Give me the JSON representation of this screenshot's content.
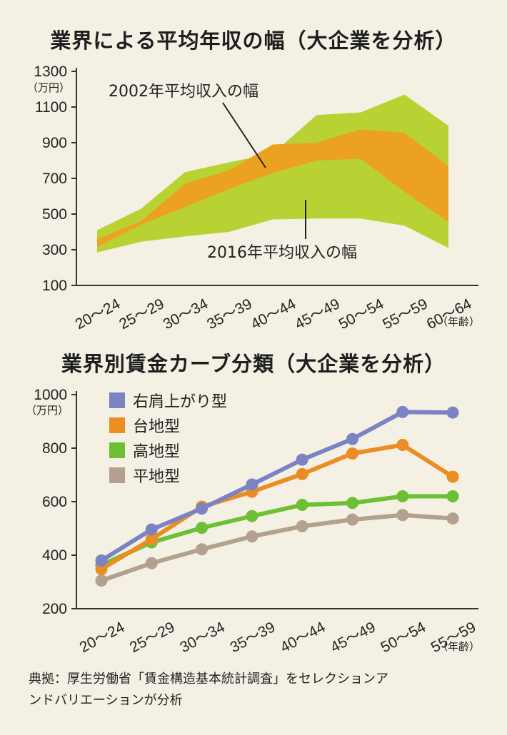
{
  "chart_data": [
    {
      "type": "area",
      "title": "業界による平均年収の幅（大企業を分析）",
      "unit_label": "（万円）",
      "x_unit_label": "（年齢）",
      "ylim": [
        100,
        1300
      ],
      "yticks": [
        100,
        300,
        500,
        700,
        900,
        1100,
        1300
      ],
      "categories": [
        "20～24",
        "25～29",
        "30～34",
        "35～39",
        "40～44",
        "45～49",
        "50～54",
        "55～59",
        "60～64"
      ],
      "series": [
        {
          "name": "2016年平均収入の幅",
          "color": "#b9d233",
          "lower": [
            285,
            345,
            375,
            400,
            470,
            475,
            475,
            435,
            310
          ],
          "upper": [
            410,
            530,
            735,
            790,
            840,
            1055,
            1070,
            1170,
            995
          ]
        },
        {
          "name": "2002年平均収入の幅",
          "color": "#eda120",
          "lower": [
            315,
            440,
            540,
            640,
            730,
            800,
            810,
            625,
            455
          ],
          "upper": [
            360,
            460,
            670,
            745,
            890,
            900,
            975,
            955,
            770
          ]
        }
      ],
      "annotations": [
        "2002年平均収入の幅",
        "2016年平均収入の幅"
      ]
    },
    {
      "type": "line",
      "title": "業界別賃金カーブ分類（大企業を分析）",
      "unit_label": "（万円）",
      "x_unit_label": "（年齢）",
      "ylim": [
        200,
        1000
      ],
      "yticks": [
        200,
        400,
        600,
        800,
        1000
      ],
      "categories": [
        "20～24",
        "25～29",
        "30～34",
        "35～39",
        "40～44",
        "45～49",
        "50～54",
        "55～59"
      ],
      "series": [
        {
          "name": "平地型",
          "color": "#b3a08e",
          "values": [
            305,
            370,
            422,
            470,
            508,
            533,
            550,
            537
          ]
        },
        {
          "name": "高地型",
          "color": "#6dc034",
          "values": [
            363,
            448,
            502,
            546,
            588,
            595,
            620,
            620
          ]
        },
        {
          "name": "台地型",
          "color": "#eb8d22",
          "values": [
            348,
            460,
            581,
            637,
            703,
            780,
            812,
            693
          ]
        },
        {
          "name": "右肩上がり型",
          "color": "#7b83c4",
          "values": [
            380,
            496,
            574,
            664,
            757,
            834,
            935,
            933
          ]
        }
      ],
      "legend": [
        "右肩上がり型",
        "台地型",
        "高地型",
        "平地型"
      ]
    }
  ],
  "source": {
    "line1": "典拠：厚生労働省「賃金構造基本統計調査」をセレクションア",
    "line2": "ンドバリエーションが分析"
  }
}
